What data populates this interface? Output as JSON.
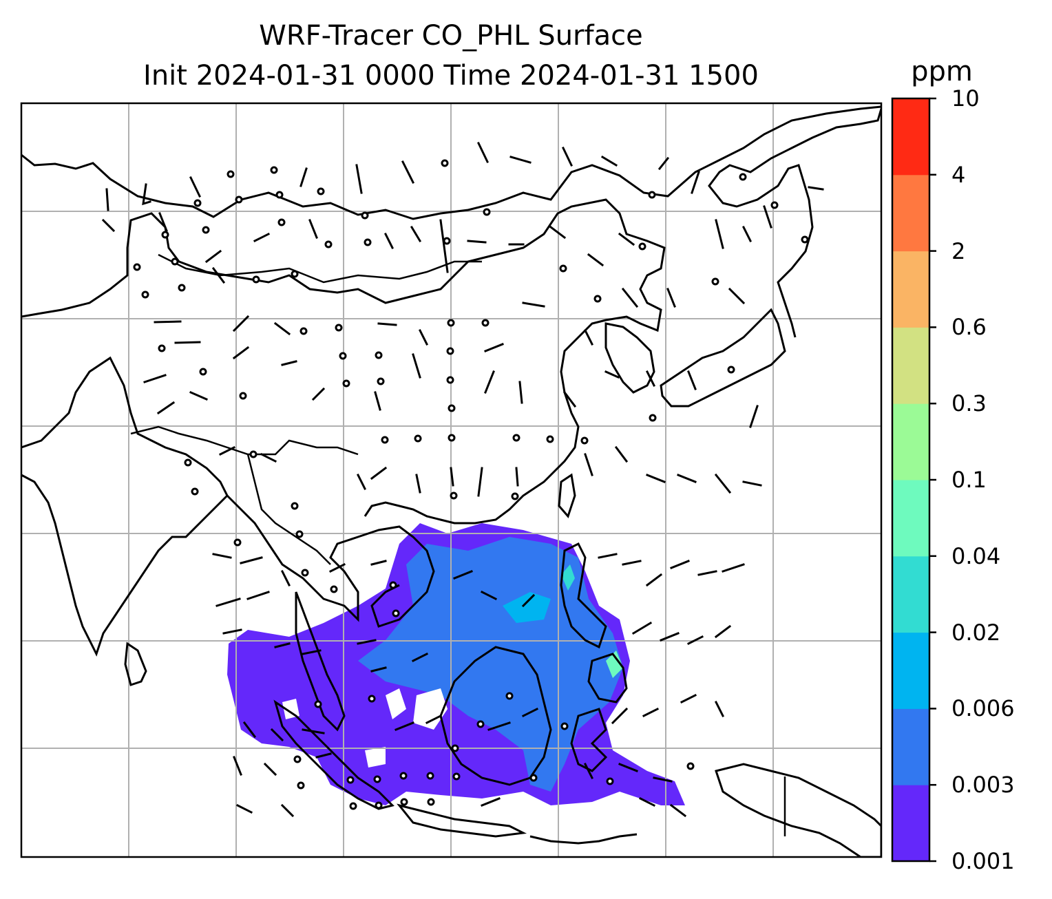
{
  "title": {
    "line1": "WRF-Tracer CO_PHL Surface",
    "line2": "Init 2024-01-31 0000 Time 2024-01-31 1500"
  },
  "colorbar": {
    "unit": "ppm",
    "levels": [
      "0.001",
      "0.003",
      "0.006",
      "0.02",
      "0.04",
      "0.1",
      "0.3",
      "0.6",
      "2",
      "4",
      "10"
    ],
    "colors": [
      "#6428fa",
      "#3278f0",
      "#00b4f0",
      "#32dcd2",
      "#6efabe",
      "#9bfa96",
      "#d2e182",
      "#fab464",
      "#ff7840",
      "#ff2a14"
    ]
  },
  "map": {
    "grid": true,
    "features": [
      "coastlines",
      "country-borders",
      "wind-barbs",
      "gridlines"
    ],
    "field": "CO_PHL surface concentration"
  }
}
